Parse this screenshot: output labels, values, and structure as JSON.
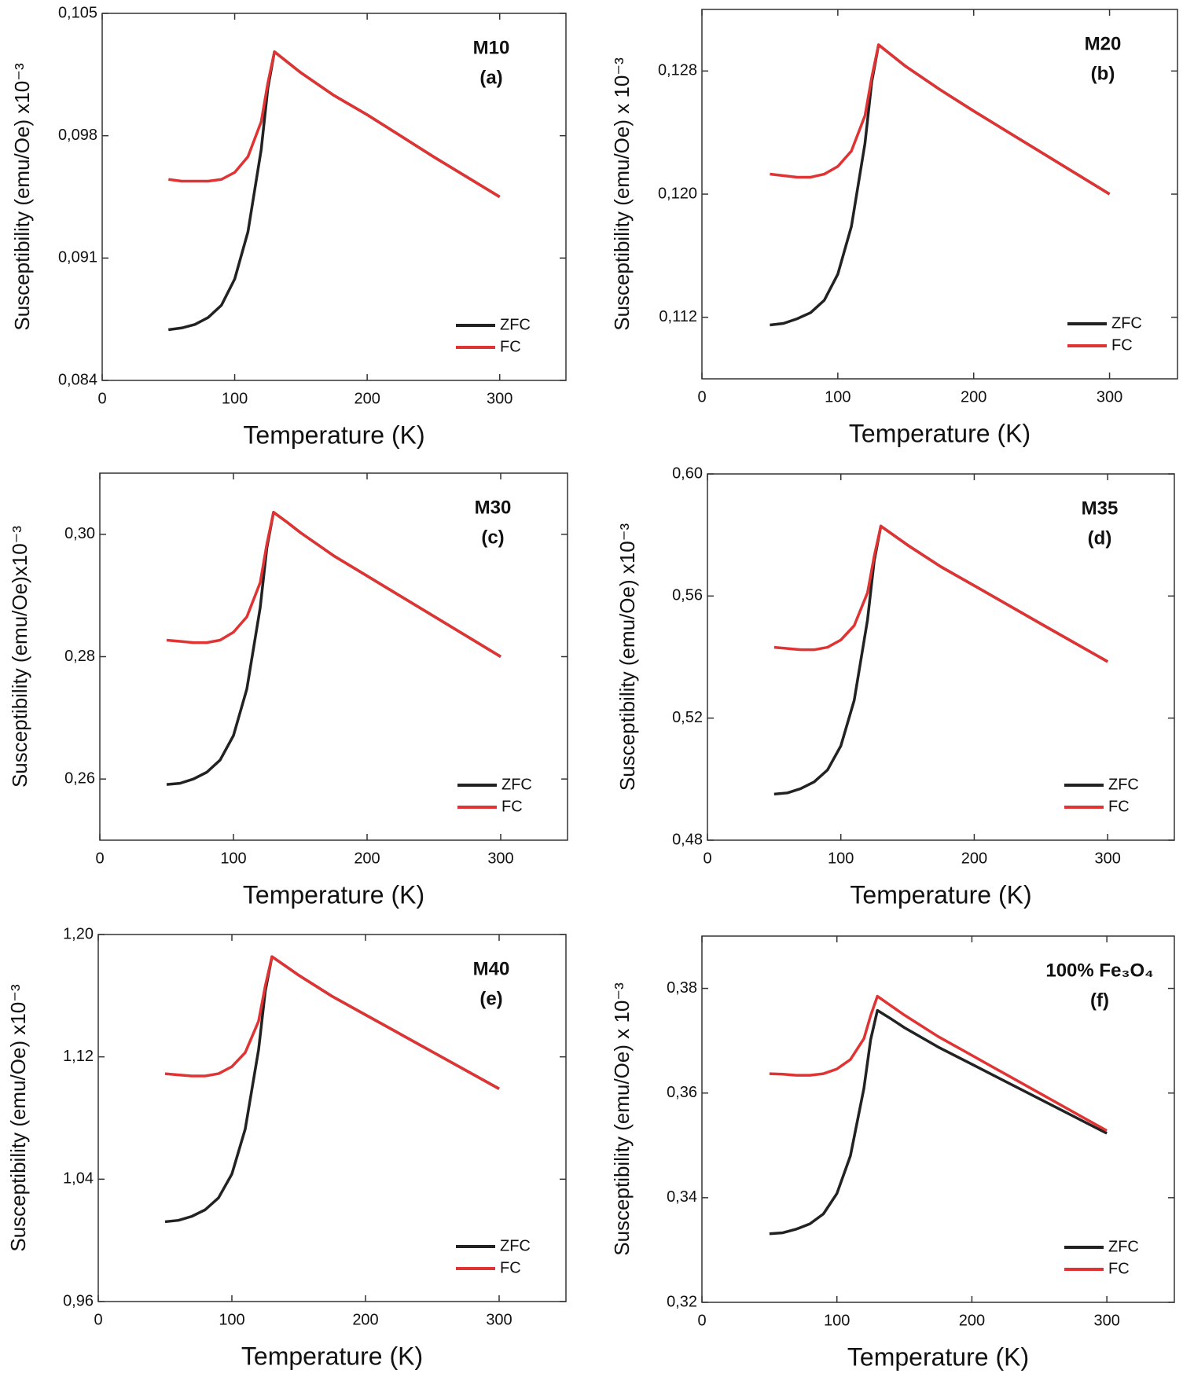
{
  "chart_data": [
    {
      "type": "line",
      "title": "M10",
      "subtitle": "(a)",
      "x_label": "Temperature (K)",
      "y_label": "Susceptibility (emu/Oe) x10⁻³",
      "x": [
        50,
        60,
        70,
        80,
        90,
        100,
        110,
        120,
        125,
        130,
        140,
        150,
        175,
        200,
        250,
        300
      ],
      "series": [
        {
          "name": "ZFC",
          "color": "#222222",
          "values": [
            0.0869,
            0.087,
            0.0872,
            0.0876,
            0.0883,
            0.0898,
            0.0925,
            0.0972,
            0.1007,
            0.1028,
            0.1022,
            0.1016,
            0.1003,
            0.0992,
            0.0968,
            0.0945
          ]
        },
        {
          "name": "FC",
          "color": "#e03434",
          "values": [
            0.0955,
            0.0954,
            0.0954,
            0.0954,
            0.0955,
            0.0959,
            0.0968,
            0.0988,
            0.101,
            0.1028,
            0.1022,
            0.1016,
            0.1003,
            0.0992,
            0.0968,
            0.0945
          ]
        }
      ],
      "xlim": [
        0,
        350
      ],
      "xticks": [
        0,
        100,
        200,
        300
      ],
      "ylim": [
        0.084,
        0.105
      ],
      "yticks": [
        {
          "value": 0.084,
          "label": "0,084"
        },
        {
          "value": 0.091,
          "label": "0,091"
        },
        {
          "value": 0.098,
          "label": "0,098"
        },
        {
          "value": 0.105,
          "label": "0,105"
        }
      ],
      "legend": "lower right"
    },
    {
      "type": "line",
      "title": "M20",
      "subtitle": "(b)",
      "x_label": "Temperature (K)",
      "y_label": "Susceptibility (emu/Oe) x 10⁻³",
      "x": [
        50,
        60,
        70,
        80,
        90,
        100,
        110,
        120,
        125,
        130,
        140,
        150,
        175,
        200,
        250,
        300
      ],
      "series": [
        {
          "name": "ZFC",
          "color": "#222222",
          "values": [
            0.1115,
            0.1116,
            0.1119,
            0.1123,
            0.1131,
            0.1148,
            0.1179,
            0.1233,
            0.1273,
            0.1297,
            0.129,
            0.1283,
            0.1268,
            0.1254,
            0.1227,
            0.12
          ]
        },
        {
          "name": "FC",
          "color": "#e03434",
          "values": [
            0.1213,
            0.1212,
            0.1211,
            0.1211,
            0.1213,
            0.1218,
            0.1228,
            0.1251,
            0.1276,
            0.1297,
            0.129,
            0.1283,
            0.1268,
            0.1254,
            0.1227,
            0.12
          ]
        }
      ],
      "xlim": [
        0,
        350
      ],
      "xticks": [
        0,
        100,
        200,
        300
      ],
      "ylim": [
        0.108,
        0.132
      ],
      "yticks": [
        {
          "value": 0.112,
          "label": "0,112"
        },
        {
          "value": 0.12,
          "label": "0,120"
        },
        {
          "value": 0.128,
          "label": "0,128"
        }
      ],
      "legend": "lower right"
    },
    {
      "type": "line",
      "title": "M30",
      "subtitle": "(c)",
      "x_label": "Temperature (K)",
      "y_label": "Susceptibility (emu/Oe)x10⁻³",
      "x": [
        50,
        60,
        70,
        80,
        90,
        100,
        110,
        120,
        125,
        130,
        140,
        150,
        175,
        200,
        250,
        300
      ],
      "series": [
        {
          "name": "ZFC",
          "color": "#222222",
          "values": [
            0.2591,
            0.2593,
            0.26,
            0.2611,
            0.2631,
            0.2671,
            0.2747,
            0.288,
            0.2978,
            0.3036,
            0.302,
            0.3003,
            0.2965,
            0.2932,
            0.2866,
            0.28
          ]
        },
        {
          "name": "FC",
          "color": "#e03434",
          "values": [
            0.2827,
            0.2825,
            0.2823,
            0.2823,
            0.2827,
            0.284,
            0.2865,
            0.2921,
            0.2984,
            0.3036,
            0.302,
            0.3003,
            0.2965,
            0.2932,
            0.2866,
            0.28
          ]
        }
      ],
      "xlim": [
        0,
        350
      ],
      "xticks": [
        0,
        100,
        200,
        300
      ],
      "ylim": [
        0.25,
        0.31
      ],
      "yticks": [
        {
          "value": 0.26,
          "label": "0,26"
        },
        {
          "value": 0.28,
          "label": "0,28"
        },
        {
          "value": 0.3,
          "label": "0,30"
        }
      ],
      "legend": "lower right"
    },
    {
      "type": "line",
      "title": "M35",
      "subtitle": "(d)",
      "x_label": "Temperature (K)",
      "y_label": "Susceptibility (emu/Oe) x10⁻³",
      "x": [
        50,
        60,
        70,
        80,
        90,
        100,
        110,
        120,
        125,
        130,
        140,
        150,
        175,
        200,
        250,
        300
      ],
      "series": [
        {
          "name": "ZFC",
          "color": "#222222",
          "values": [
            0.4951,
            0.4955,
            0.4969,
            0.4991,
            0.503,
            0.5109,
            0.5258,
            0.5522,
            0.5715,
            0.5829,
            0.5798,
            0.5767,
            0.5696,
            0.5634,
            0.5509,
            0.5385
          ]
        },
        {
          "name": "FC",
          "color": "#e03434",
          "values": [
            0.5432,
            0.5428,
            0.5424,
            0.5424,
            0.5432,
            0.5456,
            0.5503,
            0.5611,
            0.573,
            0.5829,
            0.5798,
            0.5767,
            0.5696,
            0.5634,
            0.5509,
            0.5385
          ]
        }
      ],
      "xlim": [
        0,
        350
      ],
      "xticks": [
        0,
        100,
        200,
        300
      ],
      "ylim": [
        0.48,
        0.6
      ],
      "yticks": [
        {
          "value": 0.48,
          "label": "0,48"
        },
        {
          "value": 0.52,
          "label": "0,52"
        },
        {
          "value": 0.56,
          "label": "0,56"
        },
        {
          "value": 0.6,
          "label": "0,60"
        }
      ],
      "legend": "lower right"
    },
    {
      "type": "line",
      "title": "M40",
      "subtitle": "(e)",
      "x_label": "Temperature (K)",
      "y_label": "Susceptibility (emu/Oe) x10⁻³",
      "x": [
        50,
        60,
        70,
        80,
        90,
        100,
        110,
        120,
        125,
        130,
        140,
        150,
        175,
        200,
        250,
        300
      ],
      "series": [
        {
          "name": "ZFC",
          "color": "#222222",
          "values": [
            1.0122,
            1.0131,
            1.0157,
            1.02,
            1.0278,
            1.0434,
            1.0729,
            1.1248,
            1.163,
            1.1855,
            1.1795,
            1.1734,
            1.1596,
            1.1475,
            1.1233,
            1.0991
          ]
        },
        {
          "name": "FC",
          "color": "#e03434",
          "values": [
            1.109,
            1.1082,
            1.1075,
            1.1075,
            1.109,
            1.1136,
            1.1228,
            1.1434,
            1.1664,
            1.1855,
            1.1795,
            1.1734,
            1.1596,
            1.1475,
            1.1233,
            1.0991
          ]
        }
      ],
      "xlim": [
        0,
        350
      ],
      "xticks": [
        0,
        100,
        200,
        300
      ],
      "ylim": [
        0.96,
        1.2
      ],
      "yticks": [
        {
          "value": 0.96,
          "label": "0,96"
        },
        {
          "value": 1.04,
          "label": "1,04"
        },
        {
          "value": 1.12,
          "label": "1,12"
        },
        {
          "value": 1.2,
          "label": "1,20"
        }
      ],
      "legend": "lower right"
    },
    {
      "type": "line",
      "title": "100% Fe₃O₄",
      "subtitle": "(f)",
      "x_label": "Temperature (K)",
      "y_label": "Susceptibility (emu/Oe) x 10⁻³",
      "x": [
        50,
        60,
        70,
        80,
        90,
        100,
        110,
        120,
        125,
        130,
        140,
        150,
        175,
        200,
        250,
        300
      ],
      "series": [
        {
          "name": "ZFC",
          "color": "#222222",
          "values": [
            0.3331,
            0.3333,
            0.334,
            0.335,
            0.3369,
            0.3408,
            0.348,
            0.3609,
            0.3702,
            0.3758,
            0.3742,
            0.3725,
            0.3688,
            0.3655,
            0.3589,
            0.3523
          ]
        },
        {
          "name": "FC",
          "color": "#e03434",
          "values": [
            0.3637,
            0.3636,
            0.3634,
            0.3634,
            0.3637,
            0.3646,
            0.3664,
            0.3704,
            0.3748,
            0.3785,
            0.3767,
            0.3749,
            0.3708,
            0.3672,
            0.36,
            0.3528
          ]
        }
      ],
      "xlim": [
        0,
        350
      ],
      "xticks": [
        0,
        100,
        200,
        300
      ],
      "ylim": [
        0.32,
        0.39
      ],
      "yticks": [
        {
          "value": 0.32,
          "label": "0,32"
        },
        {
          "value": 0.34,
          "label": "0,34"
        },
        {
          "value": 0.36,
          "label": "0,36"
        },
        {
          "value": 0.38,
          "label": "0,38"
        }
      ],
      "legend": "lower right"
    }
  ]
}
